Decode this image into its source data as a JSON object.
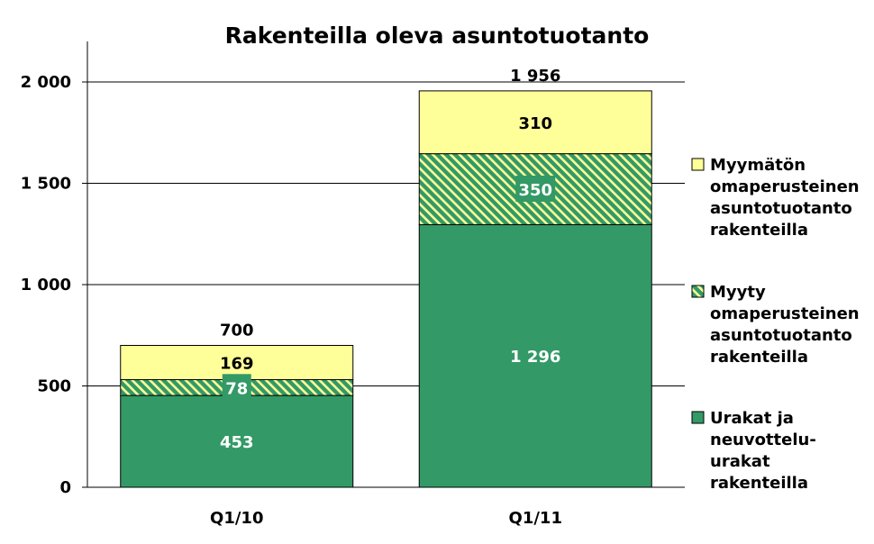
{
  "chart_data": {
    "type": "bar",
    "stacked": true,
    "title": "Rakenteilla oleva asuntotuotanto",
    "xlabel": "",
    "ylabel": "",
    "categories": [
      "Q1/10",
      "Q1/11"
    ],
    "ylim": [
      0,
      2000
    ],
    "yticks": [
      0,
      500,
      1000,
      1500,
      2000
    ],
    "ytick_labels": [
      "0",
      "500",
      "1 000",
      "1 500",
      "2 000"
    ],
    "grid": true,
    "legend_position": "right",
    "series": [
      {
        "name": "Urakat ja neuvottelu-urakat rakenteilla",
        "legend_lines": [
          "Urakat ja",
          "neuvottelu-",
          "urakat",
          "rakenteilla"
        ],
        "values": [
          453,
          1296
        ],
        "labels": [
          "453",
          "1 296"
        ],
        "color": "#339966",
        "pattern": "solid",
        "label_color": "#ffffff"
      },
      {
        "name": "Myyty omaperusteinen asuntotuotanto rakenteilla",
        "legend_lines": [
          "Myyty",
          "omaperusteinen",
          "asuntotuotanto",
          "rakenteilla"
        ],
        "values": [
          78,
          350
        ],
        "labels": [
          "78",
          "350"
        ],
        "color": "#339966",
        "pattern": "hatch",
        "hatch_color": "#ffff99",
        "label_color": "#ffffff"
      },
      {
        "name": "Myymätön omaperusteinen asuntotuotanto rakenteilla",
        "legend_lines": [
          "Myymätön",
          "omaperusteinen",
          "asuntotuotanto",
          "rakenteilla"
        ],
        "values": [
          169,
          310
        ],
        "labels": [
          "169",
          "310"
        ],
        "color": "#ffff99",
        "pattern": "solid",
        "label_color": "#000000"
      }
    ],
    "totals": [
      700,
      1956
    ],
    "total_labels": [
      "700",
      "1 956"
    ]
  }
}
